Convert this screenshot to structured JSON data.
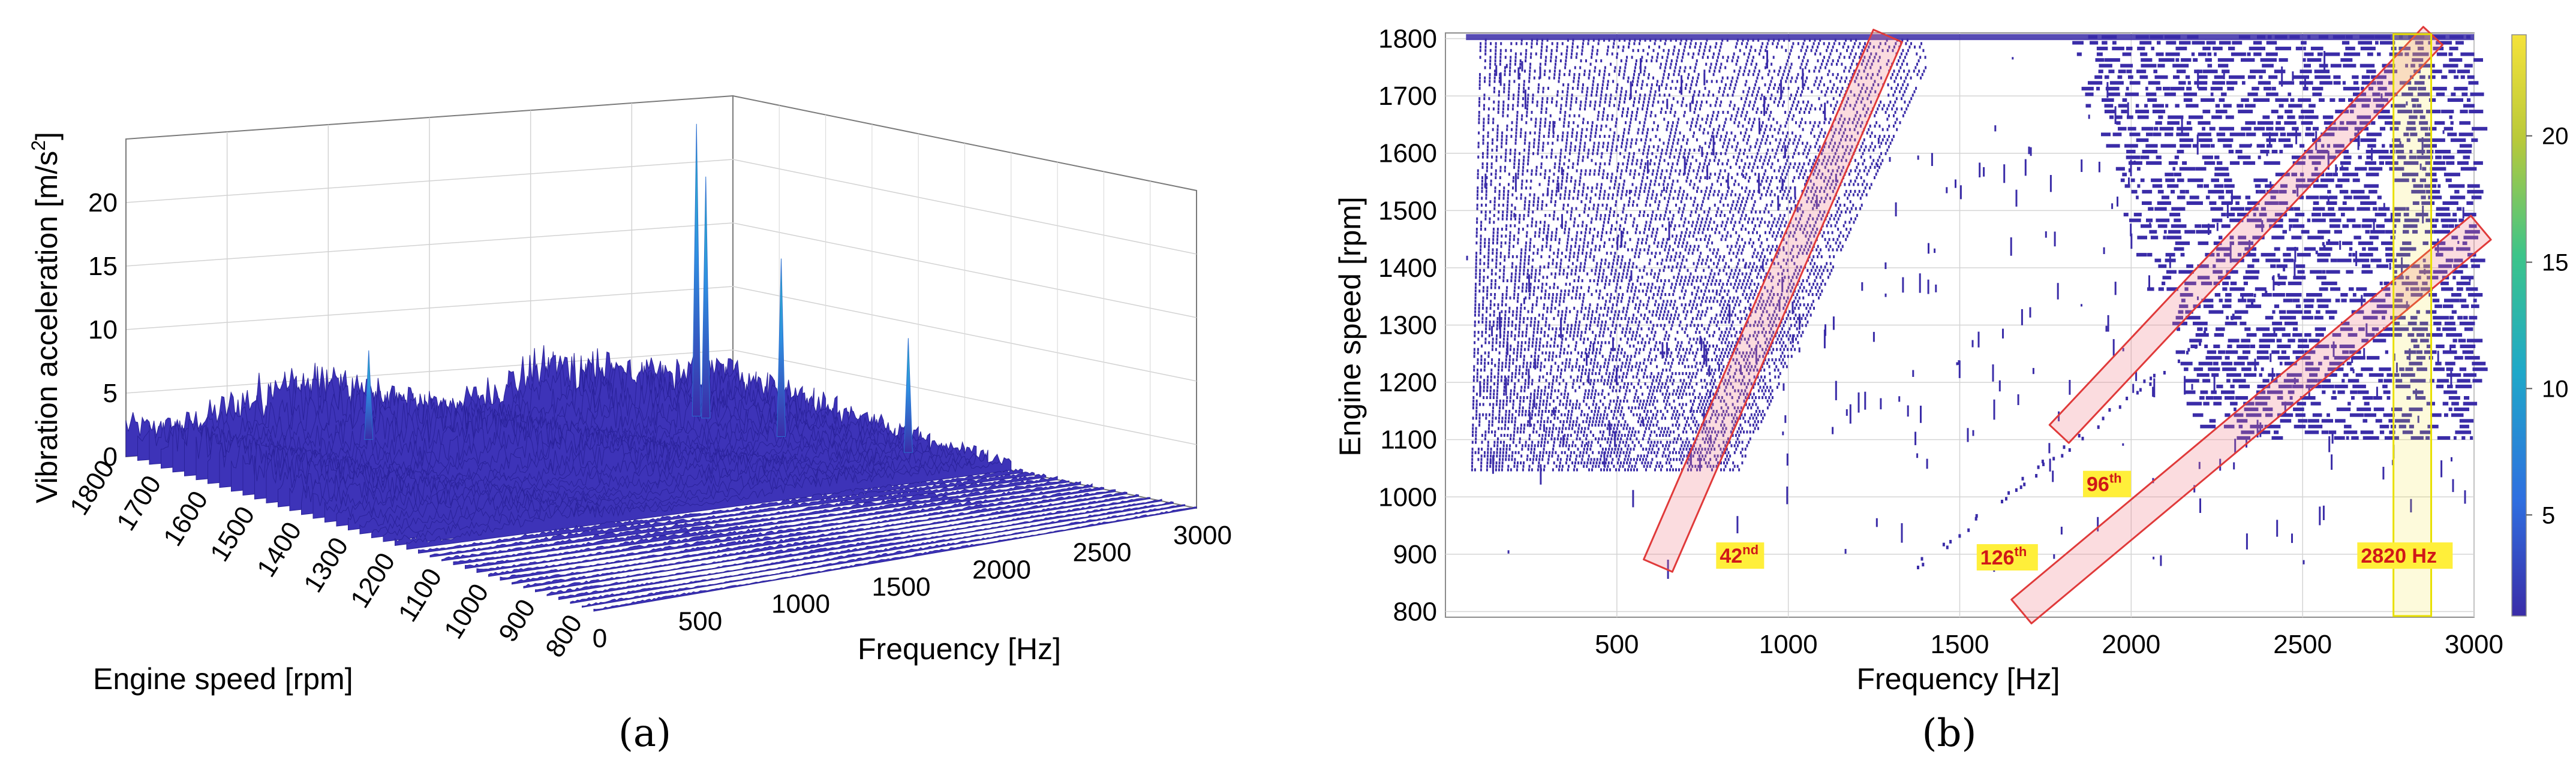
{
  "chart_data": [
    {
      "panel": "(a)",
      "type": "surface3d",
      "zlabel": "Vibration  acceleration  [m/s",
      "zlabel_sup": "2",
      "zlabel_end": "]",
      "xlabel": "Frequency [Hz]",
      "ylabel": "Engine speed [rpm]",
      "x_ticks": [
        "0",
        "500",
        "1000",
        "1500",
        "2000",
        "2500",
        "3000"
      ],
      "y_ticks": [
        "800",
        "900",
        "1000",
        "1100",
        "1200",
        "1300",
        "1400",
        "1500",
        "1600",
        "1700",
        "1800"
      ],
      "z_ticks": [
        "0",
        "5",
        "10",
        "15",
        "20"
      ],
      "xlim": [
        0,
        3000
      ],
      "ylim": [
        800,
        1800
      ],
      "zlim": [
        0,
        25
      ],
      "peaks": [
        {
          "frequency": 2820,
          "speed": 1800,
          "value": 23
        },
        {
          "frequency": 2820,
          "speed": 1780,
          "value": 19
        },
        {
          "frequency": 2780,
          "speed": 1600,
          "value": 14
        },
        {
          "frequency": 2950,
          "speed": 1400,
          "value": 9
        },
        {
          "frequency": 1200,
          "speed": 1800,
          "value": 7
        }
      ]
    },
    {
      "panel": "(b)",
      "type": "heatmap",
      "xlabel": "Frequency [Hz]",
      "ylabel": "Engine speed [rpm]",
      "x_ticks": [
        "500",
        "1000",
        "1500",
        "2000",
        "2500",
        "3000"
      ],
      "y_ticks": [
        "800",
        "900",
        "1000",
        "1100",
        "1200",
        "1300",
        "1400",
        "1500",
        "1600",
        "1700",
        "1800"
      ],
      "xlim": [
        0,
        3000
      ],
      "ylim": [
        790,
        1810
      ],
      "colorbar_ticks": [
        "5",
        "10",
        "15",
        "20"
      ],
      "colorbar_range": [
        1,
        24
      ],
      "colors": [
        "#3a2ca8",
        "#2f6fe0",
        "#1fa8c9",
        "#3cc48a",
        "#b9c93a",
        "#f5e23a"
      ],
      "annotations": [
        {
          "label": "42",
          "sup": "nd",
          "order": 42
        },
        {
          "label": "96",
          "sup": "th",
          "order": 96
        },
        {
          "label": "126",
          "sup": "th",
          "order": 126
        },
        {
          "label": "2820 Hz",
          "sup": "",
          "frequency": 2820
        }
      ]
    }
  ],
  "captions": {
    "a": "(a)",
    "b": "(b)"
  }
}
